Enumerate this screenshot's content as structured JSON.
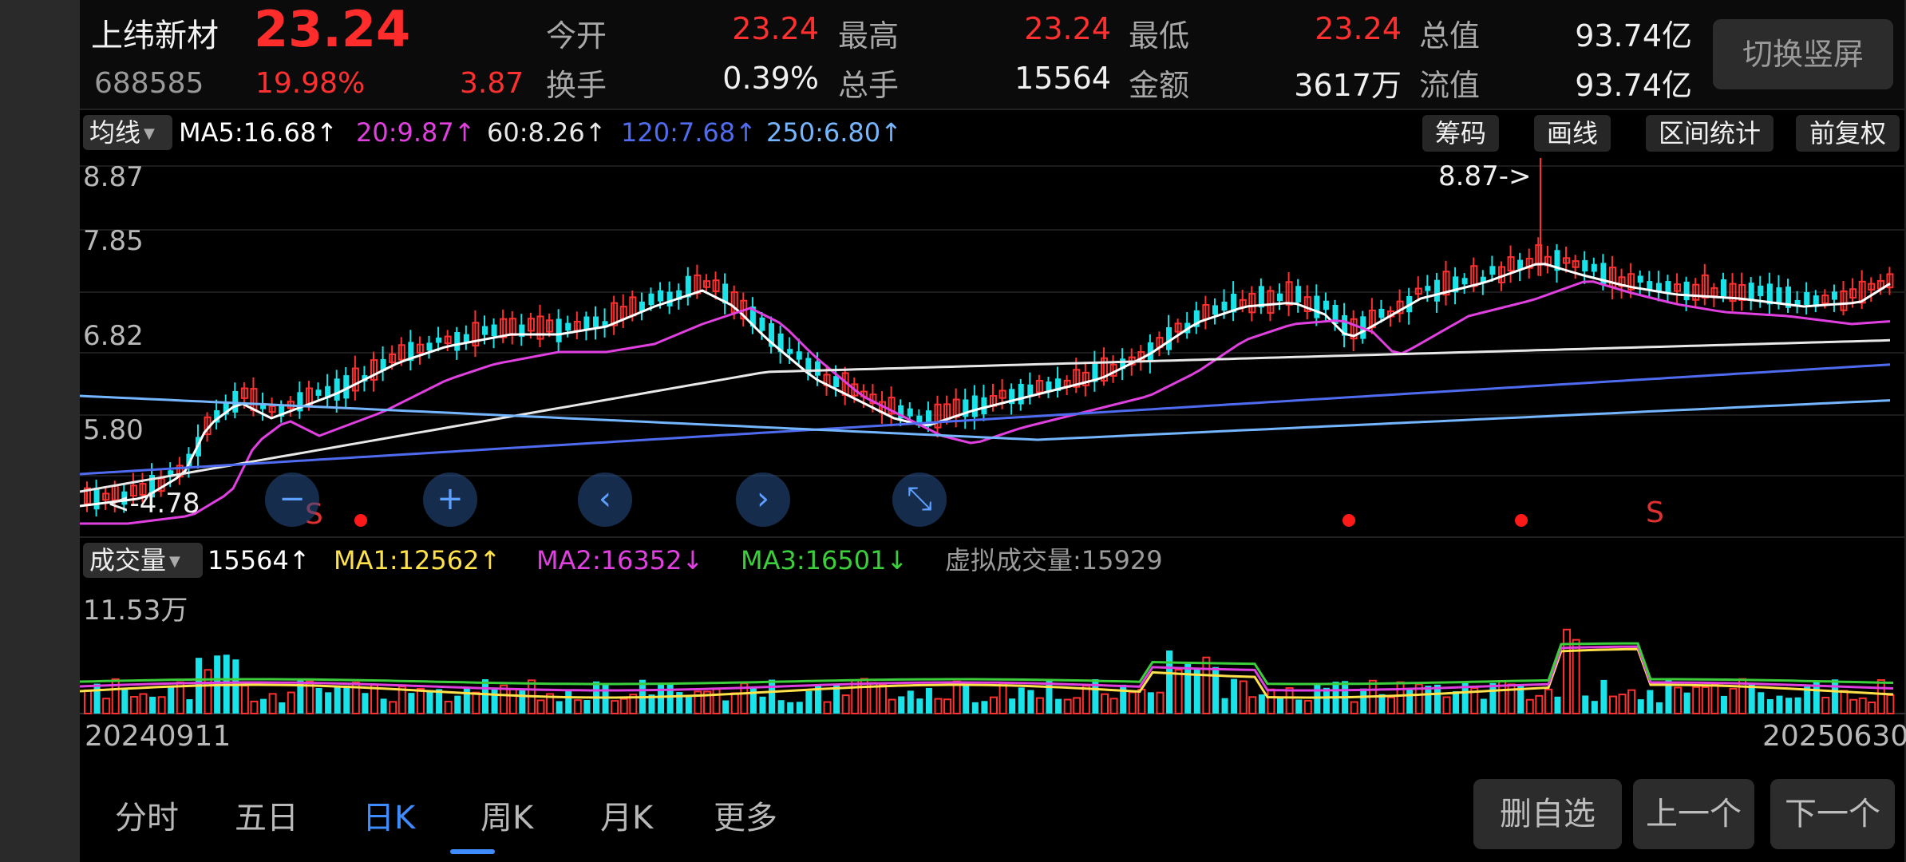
{
  "header": {
    "name": "上纬新材",
    "price": "23.24",
    "code": "688585",
    "change_pct": "19.98%",
    "change": "3.87",
    "row1": [
      {
        "label": "今开",
        "value": "23.24",
        "red": true
      },
      {
        "label": "最高",
        "value": "23.24",
        "red": true
      },
      {
        "label": "最低",
        "value": "23.24",
        "red": true
      },
      {
        "label": "总值",
        "value": "93.74亿",
        "red": false
      }
    ],
    "row2": [
      {
        "label": "换手",
        "value": "0.39%",
        "red": false
      },
      {
        "label": "总手",
        "value": "15564",
        "red": false
      },
      {
        "label": "金额",
        "value": "3617万",
        "red": false
      },
      {
        "label": "流值",
        "value": "93.74亿",
        "red": false
      }
    ],
    "switch_button": "切换竖屏"
  },
  "ma_bar": {
    "dropdown": "均线",
    "items": [
      {
        "text": "MA5:16.68↑",
        "color": "#ffffff"
      },
      {
        "text": "20:9.87↑",
        "color": "#e040e0"
      },
      {
        "text": "60:8.26↑",
        "color": "#e8e8e8"
      },
      {
        "text": "120:7.68↑",
        "color": "#4f6cf0"
      },
      {
        "text": "250:6.80↑",
        "color": "#74b6ff"
      }
    ],
    "buttons": [
      "筹码",
      "画线",
      "区间统计",
      "前复权"
    ]
  },
  "price_chart": {
    "y_ticks": [
      "8.87",
      "7.85",
      "6.82",
      "5.80",
      "4.78"
    ],
    "max_label": "8.87->",
    "min_label": "<-4.78",
    "markers": [
      "S",
      "S"
    ]
  },
  "nav_buttons": [
    "−",
    "+",
    "‹",
    "›",
    "⤡"
  ],
  "volume_bar": {
    "dropdown": "成交量",
    "items": [
      {
        "text": "15564↑",
        "color": "#ffffff"
      },
      {
        "text": "MA1:12562↑",
        "color": "#ffe14a"
      },
      {
        "text": "MA2:16352↓",
        "color": "#e040e0"
      },
      {
        "text": "MA3:16501↓",
        "color": "#3ccf3c"
      },
      {
        "text": "虚拟成交量:15929",
        "color": "#9a9a9a"
      }
    ],
    "y_max": "11.53万"
  },
  "dates": {
    "start": "20240911",
    "end": "20250630"
  },
  "tabs": [
    "分时",
    "五日",
    "日K",
    "周K",
    "月K",
    "更多"
  ],
  "active_tab": "日K",
  "bottom_buttons": [
    "删自选",
    "上一个",
    "下一个"
  ],
  "colors": {
    "up": "#ff3030",
    "down": "#19e3e8",
    "accent": "#3f8cff",
    "bg": "#000000"
  }
}
